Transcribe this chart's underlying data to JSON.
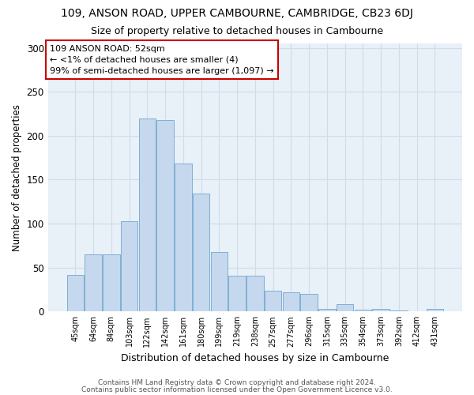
{
  "title": "109, ANSON ROAD, UPPER CAMBOURNE, CAMBRIDGE, CB23 6DJ",
  "subtitle": "Size of property relative to detached houses in Cambourne",
  "xlabel": "Distribution of detached houses by size in Cambourne",
  "ylabel": "Number of detached properties",
  "categories": [
    "45sqm",
    "64sqm",
    "84sqm",
    "103sqm",
    "122sqm",
    "142sqm",
    "161sqm",
    "180sqm",
    "199sqm",
    "219sqm",
    "238sqm",
    "257sqm",
    "277sqm",
    "296sqm",
    "315sqm",
    "335sqm",
    "354sqm",
    "373sqm",
    "392sqm",
    "412sqm",
    "431sqm"
  ],
  "values": [
    42,
    65,
    65,
    103,
    220,
    218,
    168,
    134,
    68,
    41,
    41,
    24,
    22,
    20,
    3,
    8,
    2,
    3,
    1,
    0,
    3
  ],
  "bar_color": "#c5d8ed",
  "bar_edge_color": "#7fafd4",
  "ylim": [
    0,
    305
  ],
  "yticks": [
    0,
    50,
    100,
    150,
    200,
    250,
    300
  ],
  "annotation_lines": [
    "109 ANSON ROAD: 52sqm",
    "← <1% of detached houses are smaller (4)",
    "99% of semi-detached houses are larger (1,097) →"
  ],
  "annotation_box_color": "#ffffff",
  "annotation_box_edge_color": "#cc0000",
  "footer_line1": "Contains HM Land Registry data © Crown copyright and database right 2024.",
  "footer_line2": "Contains public sector information licensed under the Open Government Licence v3.0.",
  "background_color": "#ffffff",
  "grid_color": "#d0dce8",
  "plot_bg_color": "#e8f0f8"
}
